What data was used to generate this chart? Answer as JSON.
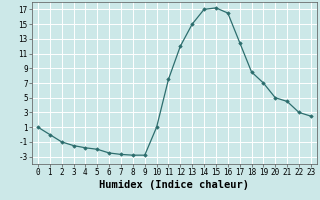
{
  "x": [
    0,
    1,
    2,
    3,
    4,
    5,
    6,
    7,
    8,
    9,
    10,
    11,
    12,
    13,
    14,
    15,
    16,
    17,
    18,
    19,
    20,
    21,
    22,
    23
  ],
  "y": [
    1,
    0,
    -1,
    -1.5,
    -1.8,
    -2,
    -2.5,
    -2.7,
    -2.8,
    -2.8,
    1,
    7.5,
    12,
    15,
    17,
    17.2,
    16.5,
    12.5,
    8.5,
    7,
    5,
    4.5,
    3,
    2.5
  ],
  "line_color": "#2d6e6e",
  "marker": "D",
  "marker_size": 1.8,
  "bg_color": "#cce8e8",
  "grid_color": "#ffffff",
  "xlabel": "Humidex (Indice chaleur)",
  "ylim": [
    -4,
    18
  ],
  "xlim": [
    -0.5,
    23.5
  ],
  "yticks": [
    -3,
    -1,
    1,
    3,
    5,
    7,
    9,
    11,
    13,
    15,
    17
  ],
  "xticks": [
    0,
    1,
    2,
    3,
    4,
    5,
    6,
    7,
    8,
    9,
    10,
    11,
    12,
    13,
    14,
    15,
    16,
    17,
    18,
    19,
    20,
    21,
    22,
    23
  ],
  "tick_fontsize": 5.5,
  "xlabel_fontsize": 7.5,
  "xlabel_fontweight": "bold"
}
